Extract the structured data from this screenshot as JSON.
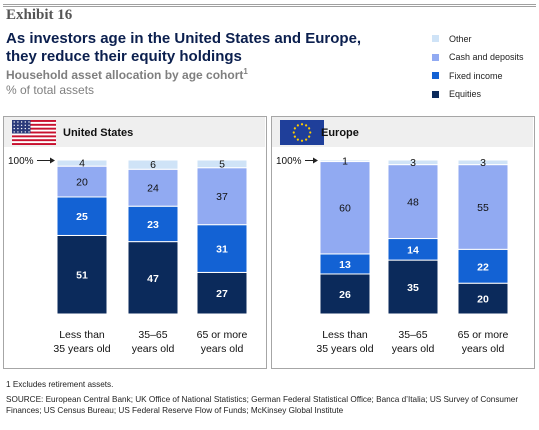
{
  "header": {
    "exhibit": "Exhibit 16",
    "title": "As investors age in the United States and Europe, they reduce their equity holdings",
    "subtitle": "Household asset allocation by age cohort",
    "subtitle_note": "1",
    "unit": "% of total assets"
  },
  "colors": {
    "Other": "#cfe3f7",
    "Cash and deposits": "#91aaf2",
    "Fixed income": "#1362d4",
    "Equities": "#0b2a5b"
  },
  "legend_order": [
    "Other",
    "Cash and deposits",
    "Fixed income",
    "Equities"
  ],
  "chart_data": [
    {
      "type": "bar",
      "stacked": true,
      "title": "United States",
      "flag": "us-flag-icon",
      "reference_label": "100%",
      "categories": [
        "Less than 35 years old",
        "35–65 years old",
        "65 or more years old"
      ],
      "category_lines": [
        [
          "Less than",
          "35 years old"
        ],
        [
          "35–65",
          "years old"
        ],
        [
          "65 or more",
          "years old"
        ]
      ],
      "series": [
        {
          "name": "Equities",
          "values": [
            51,
            47,
            27
          ]
        },
        {
          "name": "Fixed income",
          "values": [
            25,
            23,
            31
          ]
        },
        {
          "name": "Cash and deposits",
          "values": [
            20,
            24,
            37
          ]
        },
        {
          "name": "Other",
          "values": [
            4,
            6,
            5
          ]
        }
      ],
      "ylim": [
        0,
        100
      ]
    },
    {
      "type": "bar",
      "stacked": true,
      "title": "Europe",
      "flag": "eu-flag-icon",
      "reference_label": "100%",
      "categories": [
        "Less than 35 years old",
        "35–65 years old",
        "65 or more years old"
      ],
      "category_lines": [
        [
          "Less than",
          "35 years old"
        ],
        [
          "35–65",
          "years old"
        ],
        [
          "65 or more",
          "years old"
        ]
      ],
      "series": [
        {
          "name": "Equities",
          "values": [
            26,
            35,
            20
          ]
        },
        {
          "name": "Fixed income",
          "values": [
            13,
            14,
            22
          ]
        },
        {
          "name": "Cash and deposits",
          "values": [
            60,
            48,
            55
          ]
        },
        {
          "name": "Other",
          "values": [
            1,
            3,
            3
          ]
        }
      ],
      "ylim": [
        0,
        100
      ]
    }
  ],
  "footnote": "1  Excludes retirement assets.",
  "source": "SOURCE: European Central Bank; UK Office of National Statistics; German Federal Statistical Office; Banca d’Italia; US Survey of Consumer Finances; US Census Bureau; US Federal Reserve Flow of Funds; McKinsey Global Institute"
}
